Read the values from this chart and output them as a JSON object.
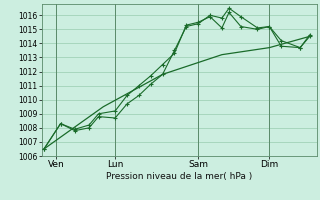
{
  "xlabel": "Pression niveau de la mer( hPa )",
  "bg_color": "#cceee0",
  "grid_color": "#99ccb0",
  "line_color": "#1a6b2a",
  "ylim": [
    1006,
    1016.8
  ],
  "xlim": [
    -0.1,
    11.5
  ],
  "yticks": [
    1006,
    1007,
    1008,
    1009,
    1010,
    1011,
    1012,
    1013,
    1014,
    1015,
    1016
  ],
  "day_labels": [
    "Ven",
    "Lun",
    "Sam",
    "Dim"
  ],
  "day_positions": [
    0.5,
    3.0,
    6.5,
    9.5
  ],
  "vline_positions": [
    0.5,
    3.0,
    6.5,
    9.5
  ],
  "line1_x": [
    0.0,
    0.7,
    1.3,
    1.9,
    2.3,
    3.0,
    3.5,
    4.0,
    4.5,
    5.0,
    5.5,
    6.0,
    6.5,
    7.0,
    7.5,
    7.8,
    8.3,
    9.0,
    9.5,
    10.0,
    10.8,
    11.2
  ],
  "line1_y": [
    1006.5,
    1008.3,
    1007.8,
    1008.0,
    1008.8,
    1008.7,
    1009.7,
    1010.3,
    1011.1,
    1011.8,
    1013.5,
    1015.2,
    1015.4,
    1016.0,
    1015.8,
    1016.5,
    1015.9,
    1015.1,
    1015.2,
    1014.2,
    1013.7,
    1014.5
  ],
  "line2_x": [
    0.0,
    0.7,
    1.3,
    1.9,
    2.3,
    3.0,
    3.5,
    4.0,
    4.5,
    5.0,
    5.5,
    6.0,
    6.5,
    7.0,
    7.5,
    7.8,
    8.3,
    9.0,
    9.5,
    10.0,
    10.8,
    11.2
  ],
  "line2_y": [
    1006.5,
    1008.3,
    1007.9,
    1008.2,
    1009.0,
    1009.2,
    1010.3,
    1011.0,
    1011.7,
    1012.5,
    1013.3,
    1015.3,
    1015.5,
    1015.9,
    1015.1,
    1016.2,
    1015.2,
    1015.0,
    1015.2,
    1013.8,
    1013.7,
    1014.6
  ],
  "line3_x": [
    0.0,
    2.5,
    5.0,
    7.5,
    9.5,
    11.2
  ],
  "line3_y": [
    1006.5,
    1009.5,
    1011.8,
    1013.2,
    1013.7,
    1014.5
  ]
}
